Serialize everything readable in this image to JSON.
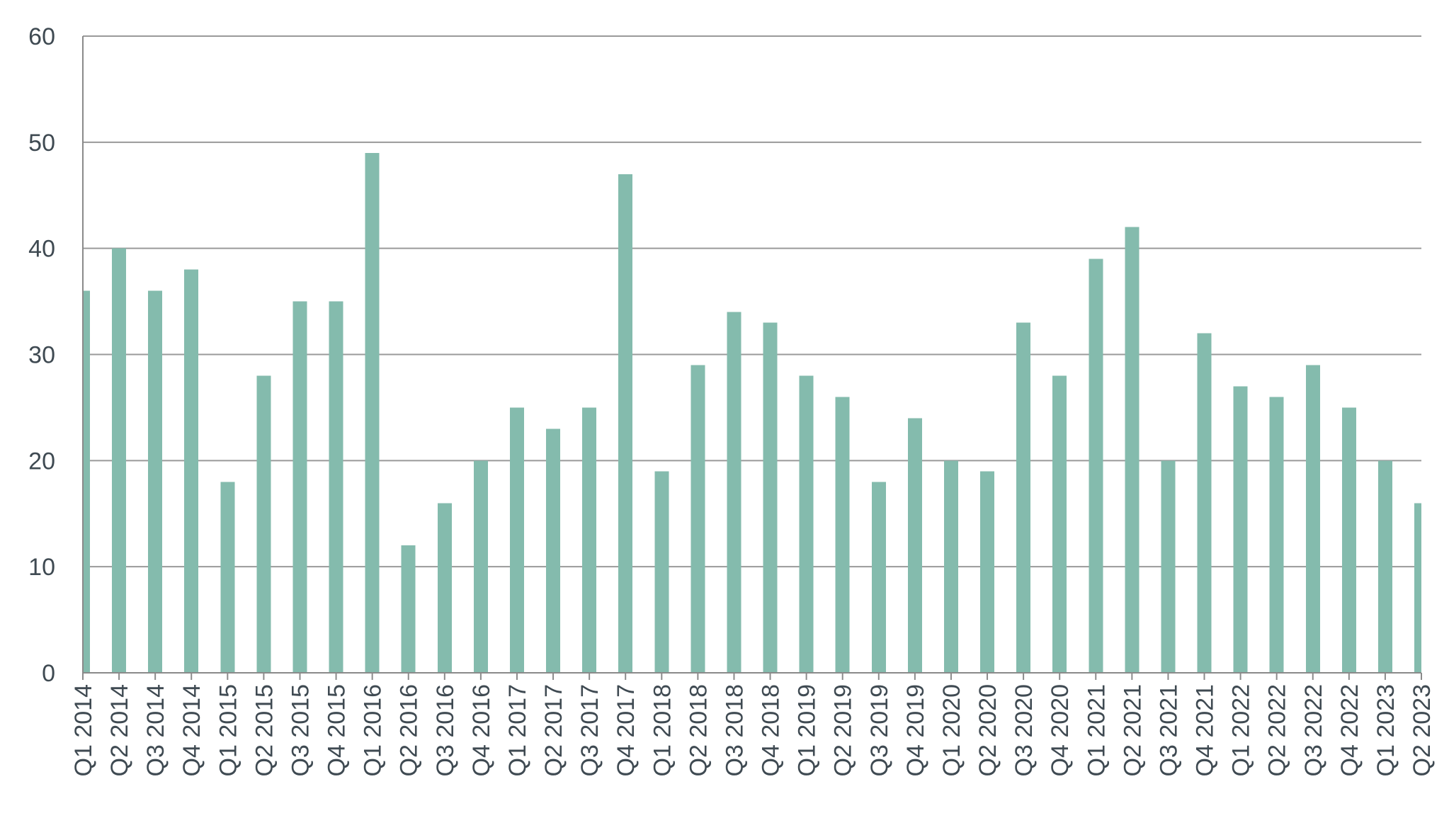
{
  "chart_data": {
    "type": "bar",
    "title": "",
    "xlabel": "",
    "ylabel": "",
    "ylim": [
      0,
      60
    ],
    "yticks": [
      0,
      10,
      20,
      30,
      40,
      50,
      60
    ],
    "grid": true,
    "legend": "none",
    "bar_color": "#84bbad",
    "categories": [
      "Q1 2014",
      "Q2 2014",
      "Q3 2014",
      "Q4 2014",
      "Q1 2015",
      "Q2 2015",
      "Q3 2015",
      "Q4 2015",
      "Q1 2016",
      "Q2 2016",
      "Q3 2016",
      "Q4 2016",
      "Q1 2017",
      "Q2 2017",
      "Q3 2017",
      "Q4 2017",
      "Q1 2018",
      "Q2 2018",
      "Q3 2018",
      "Q4 2018",
      "Q1 2019",
      "Q2 2019",
      "Q3 2019",
      "Q4 2019",
      "Q1 2020",
      "Q2 2020",
      "Q3 2020",
      "Q4 2020",
      "Q1 2021",
      "Q2 2021",
      "Q3 2021",
      "Q4 2021",
      "Q1 2022",
      "Q2 2022",
      "Q3 2022",
      "Q4 2022",
      "Q1 2023",
      "Q2 2023"
    ],
    "values": [
      36,
      40,
      36,
      38,
      18,
      28,
      35,
      35,
      49,
      12,
      16,
      20,
      25,
      23,
      25,
      47,
      19,
      29,
      34,
      33,
      28,
      26,
      18,
      24,
      20,
      19,
      33,
      28,
      39,
      42,
      20,
      32,
      27,
      26,
      29,
      25,
      20,
      16
    ]
  }
}
